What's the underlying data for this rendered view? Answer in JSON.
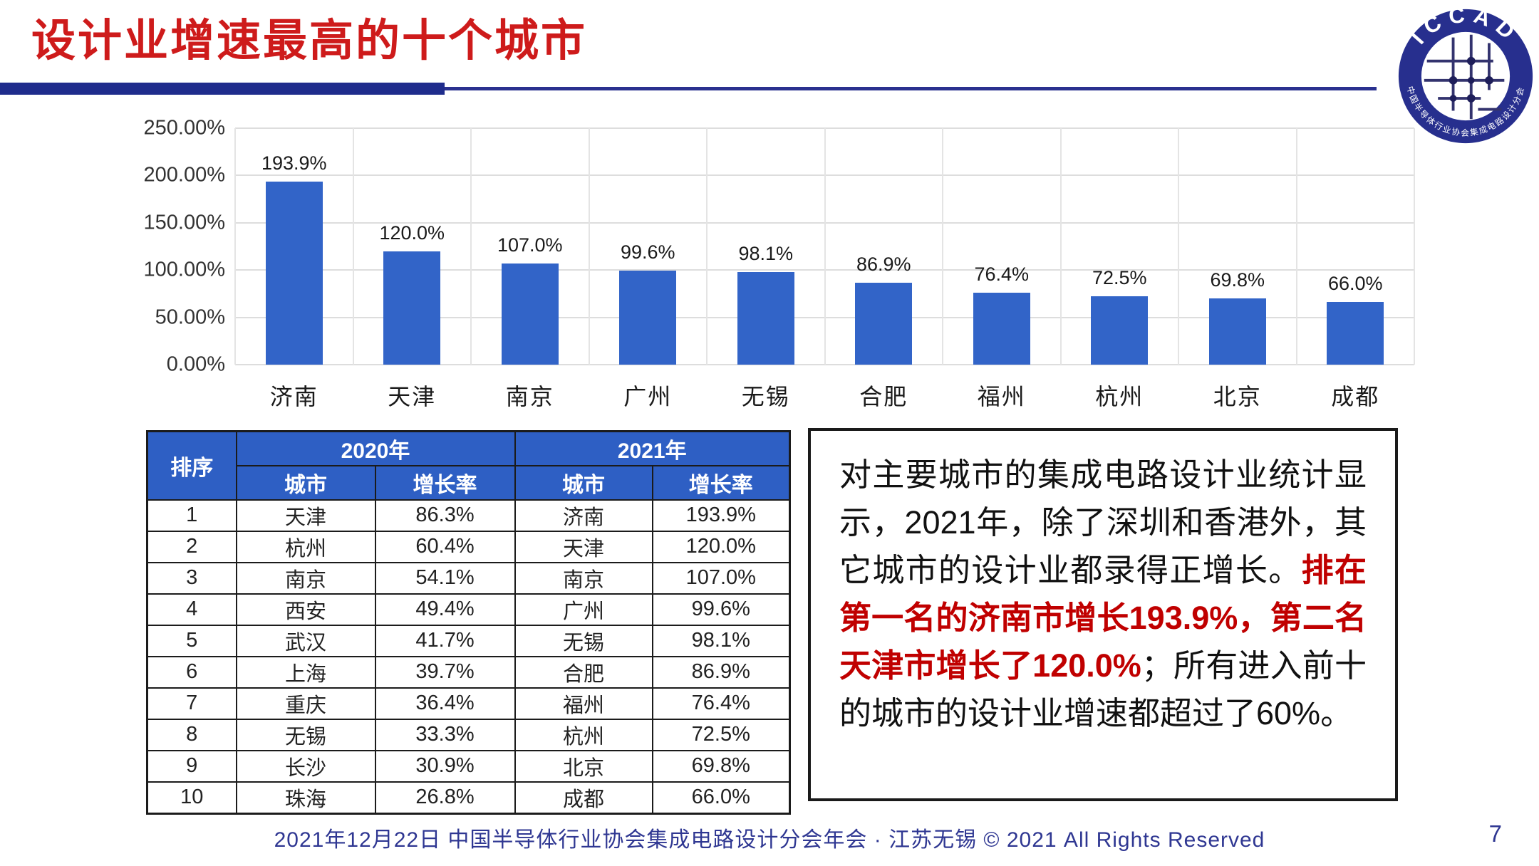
{
  "header": {
    "title": "设计业增速最高的十个城市"
  },
  "logo": {
    "top_text": "ICCAD",
    "bottom_text": "中国半导体行业协会集成电路设计分会"
  },
  "chart_data": {
    "type": "bar",
    "title": "",
    "xlabel": "",
    "ylabel": "",
    "categories": [
      "济南",
      "天津",
      "南京",
      "广州",
      "无锡",
      "合肥",
      "福州",
      "杭州",
      "北京",
      "成都"
    ],
    "values": [
      193.9,
      120.0,
      107.0,
      99.6,
      98.1,
      86.9,
      76.4,
      72.5,
      69.8,
      66.0
    ],
    "data_labels": [
      "193.9%",
      "120.0%",
      "107.0%",
      "99.6%",
      "98.1%",
      "86.9%",
      "76.4%",
      "72.5%",
      "69.8%",
      "66.0%"
    ],
    "y_ticks": [
      "0.00%",
      "50.00%",
      "100.00%",
      "150.00%",
      "200.00%",
      "250.00%"
    ],
    "ylim": [
      0,
      250
    ],
    "grid": true,
    "legend": "none",
    "bar_color": "#3264C8"
  },
  "table": {
    "header": {
      "rank": "排序",
      "year2020": "2020年",
      "year2021": "2021年",
      "city": "城市",
      "rate": "增长率"
    },
    "rows": [
      [
        "1",
        "天津",
        "86.3%",
        "济南",
        "193.9%"
      ],
      [
        "2",
        "杭州",
        "60.4%",
        "天津",
        "120.0%"
      ],
      [
        "3",
        "南京",
        "54.1%",
        "南京",
        "107.0%"
      ],
      [
        "4",
        "西安",
        "49.4%",
        "广州",
        "99.6%"
      ],
      [
        "5",
        "武汉",
        "41.7%",
        "无锡",
        "98.1%"
      ],
      [
        "6",
        "上海",
        "39.7%",
        "合肥",
        "86.9%"
      ],
      [
        "7",
        "重庆",
        "36.4%",
        "福州",
        "76.4%"
      ],
      [
        "8",
        "无锡",
        "33.3%",
        "杭州",
        "72.5%"
      ],
      [
        "9",
        "长沙",
        "30.9%",
        "北京",
        "69.8%"
      ],
      [
        "10",
        "珠海",
        "26.8%",
        "成都",
        "66.0%"
      ]
    ]
  },
  "note": {
    "seg1": "对主要城市的集成电路设计业统计显示，2021年，除了深圳和香港外，其它城市的设计业都录得正增长。",
    "seg2": "排在第一名的济南市增长193.9%，第二名天津市增长了120.0%",
    "seg3": "；所有进入前十的城市的设计业增速都超过了60%。"
  },
  "footer": {
    "text": "2021年12月22日 中国半导体行业协会集成电路设计分会年会 · 江苏无锡 © 2021 All Rights Reserved",
    "page": "7"
  },
  "colors": {
    "title_red": "#CE1B1B",
    "accent_navy": "#1F2C8C",
    "bar_blue": "#3264C8",
    "table_header_blue": "#2E5FC4",
    "note_highlight_red": "#C00000",
    "footer_navy": "#2F3792",
    "gridline_gray": "#DDDDDD"
  }
}
